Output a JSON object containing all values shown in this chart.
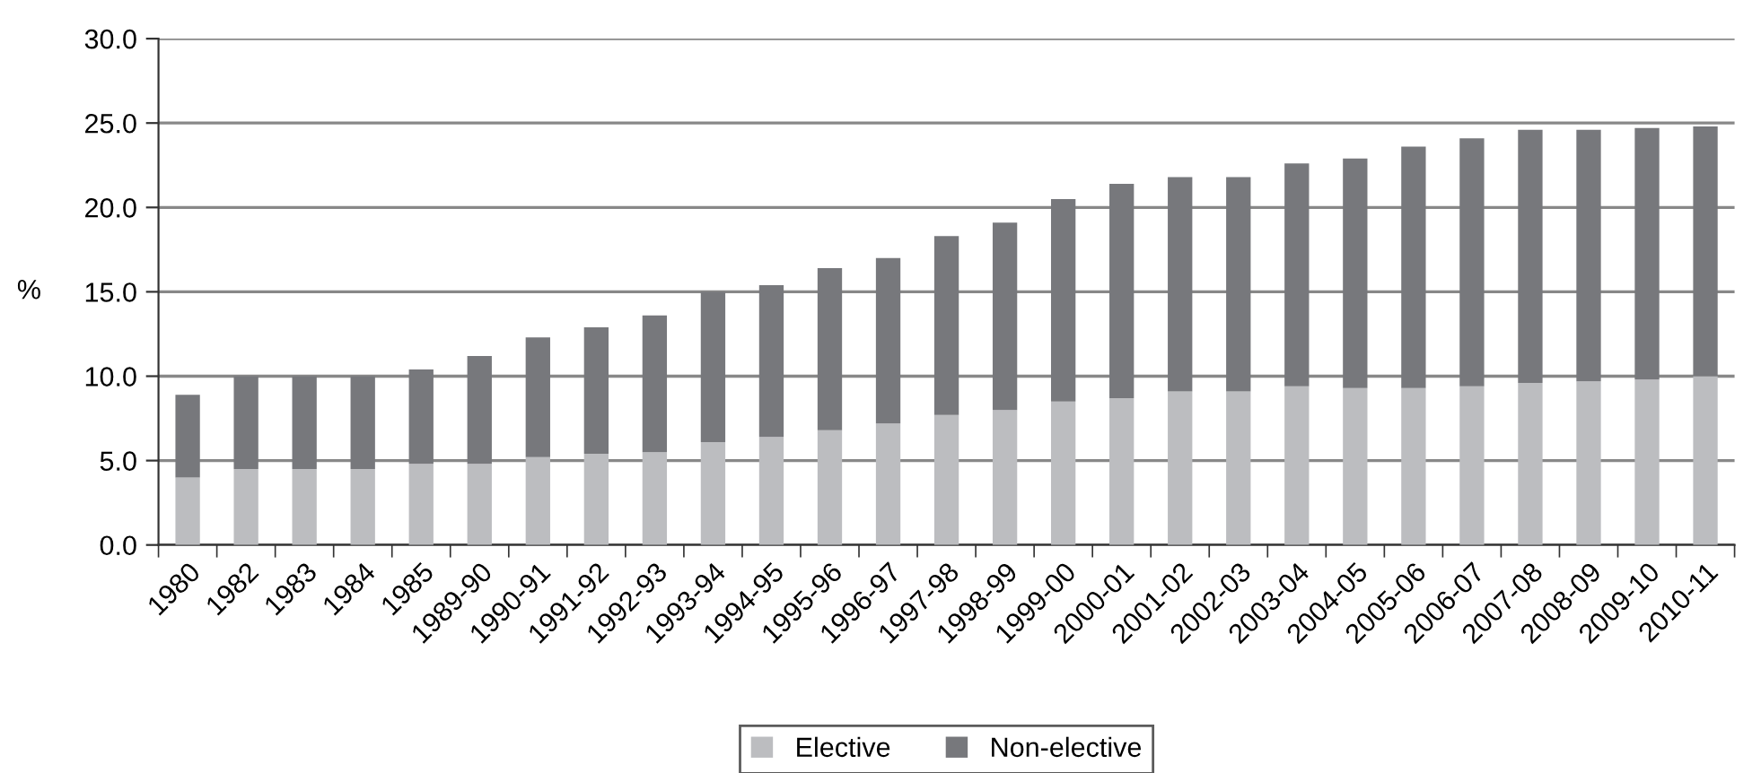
{
  "chart_data": {
    "type": "bar",
    "stacked": true,
    "ylabel": "%",
    "categories": [
      "1980",
      "1982",
      "1983",
      "1984",
      "1985",
      "1989-90",
      "1990-91",
      "1991-92",
      "1992-93",
      "1993-94",
      "1994-95",
      "1995-96",
      "1996-97",
      "1997-98",
      "1998-99",
      "1999-00",
      "2000-01",
      "2001-02",
      "2002-03",
      "2003-04",
      "2004-05",
      "2005-06",
      "2006-07",
      "2007-08",
      "2008-09",
      "2009-10",
      "2010-11"
    ],
    "series": [
      {
        "name": "Elective",
        "color": "#bcbdc0",
        "values": [
          4.0,
          4.5,
          4.5,
          4.5,
          4.8,
          4.8,
          5.2,
          5.4,
          5.5,
          6.1,
          6.4,
          6.8,
          7.2,
          7.7,
          8.0,
          8.5,
          8.7,
          9.1,
          9.1,
          9.4,
          9.3,
          9.3,
          9.4,
          9.6,
          9.7,
          9.8,
          10.0
        ]
      },
      {
        "name": "Non-elective",
        "color": "#77787c",
        "values": [
          4.9,
          5.5,
          5.5,
          5.5,
          5.6,
          6.4,
          7.1,
          7.5,
          8.1,
          8.9,
          9.0,
          9.6,
          9.8,
          10.6,
          11.1,
          12.0,
          12.7,
          12.7,
          12.7,
          13.2,
          13.6,
          14.3,
          14.7,
          15.0,
          14.9,
          14.9,
          14.8
        ]
      }
    ],
    "ylim": [
      0,
      30
    ],
    "yticks": [
      {
        "value": 0,
        "label": "0.0"
      },
      {
        "value": 5,
        "label": "5.0"
      },
      {
        "value": 10,
        "label": "10.0"
      },
      {
        "value": 15,
        "label": "15.0"
      },
      {
        "value": 20,
        "label": "20.0"
      },
      {
        "value": 25,
        "label": "25.0"
      },
      {
        "value": 30,
        "label": "30.0"
      }
    ],
    "grid": "y",
    "legend": "bottom"
  }
}
